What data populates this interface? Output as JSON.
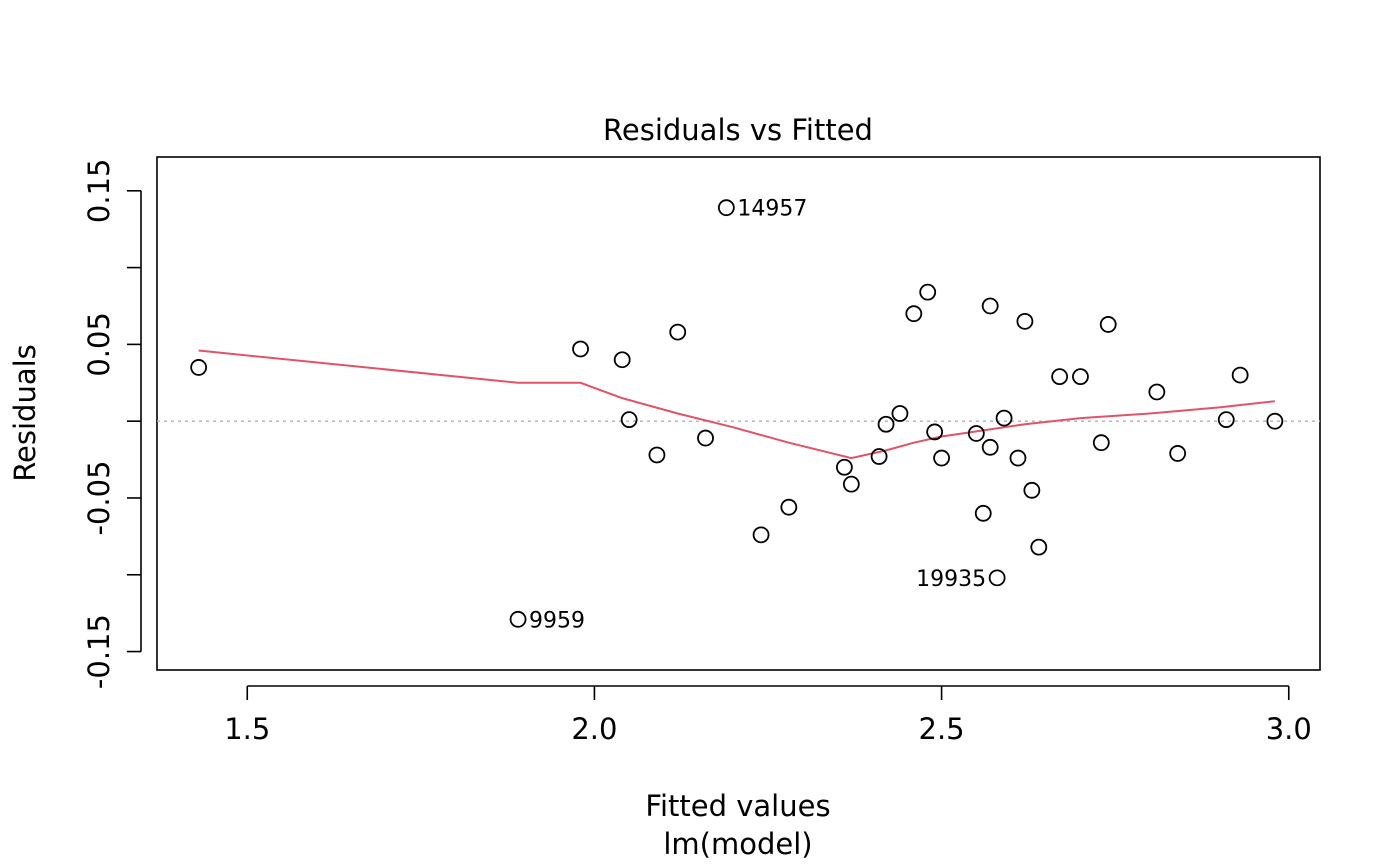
{
  "chart_data": {
    "type": "scatter",
    "title": "Residuals vs Fitted",
    "xlabel": "Fitted values",
    "subtitle": "lm(model)",
    "ylabel": "Residuals",
    "xlim": [
      1.37,
      3.045
    ],
    "ylim": [
      -0.162,
      0.172
    ],
    "x_ticks": [
      "1.5",
      "2.0",
      "2.5",
      "3.0"
    ],
    "y_ticks": [
      "-0.15",
      "-0.05",
      "0.05",
      "0.15"
    ],
    "reference_line": {
      "y": 0,
      "style": "dotted",
      "color": "#b0b0b0"
    },
    "points": [
      {
        "x": 1.43,
        "y": 0.035
      },
      {
        "x": 1.89,
        "y": -0.129,
        "label": "9959"
      },
      {
        "x": 1.98,
        "y": 0.047
      },
      {
        "x": 2.04,
        "y": 0.04
      },
      {
        "x": 2.05,
        "y": 0.001
      },
      {
        "x": 2.09,
        "y": -0.022
      },
      {
        "x": 2.12,
        "y": 0.058
      },
      {
        "x": 2.16,
        "y": -0.011
      },
      {
        "x": 2.19,
        "y": 0.139,
        "label": "14957"
      },
      {
        "x": 2.24,
        "y": -0.074
      },
      {
        "x": 2.28,
        "y": -0.056
      },
      {
        "x": 2.36,
        "y": -0.03
      },
      {
        "x": 2.37,
        "y": -0.041
      },
      {
        "x": 2.41,
        "y": -0.023
      },
      {
        "x": 2.42,
        "y": -0.002
      },
      {
        "x": 2.44,
        "y": 0.005
      },
      {
        "x": 2.46,
        "y": 0.07
      },
      {
        "x": 2.48,
        "y": 0.084
      },
      {
        "x": 2.49,
        "y": -0.007
      },
      {
        "x": 2.5,
        "y": -0.024
      },
      {
        "x": 2.55,
        "y": -0.008
      },
      {
        "x": 2.56,
        "y": -0.06
      },
      {
        "x": 2.57,
        "y": -0.017
      },
      {
        "x": 2.57,
        "y": 0.075
      },
      {
        "x": 2.58,
        "y": -0.102,
        "label": "19935"
      },
      {
        "x": 2.59,
        "y": 0.002
      },
      {
        "x": 2.61,
        "y": -0.024
      },
      {
        "x": 2.62,
        "y": 0.065
      },
      {
        "x": 2.63,
        "y": -0.045
      },
      {
        "x": 2.64,
        "y": -0.082
      },
      {
        "x": 2.67,
        "y": 0.029
      },
      {
        "x": 2.7,
        "y": 0.029
      },
      {
        "x": 2.73,
        "y": -0.014
      },
      {
        "x": 2.74,
        "y": 0.063
      },
      {
        "x": 2.81,
        "y": 0.019
      },
      {
        "x": 2.84,
        "y": -0.021
      },
      {
        "x": 2.91,
        "y": 0.001
      },
      {
        "x": 2.93,
        "y": 0.03
      },
      {
        "x": 2.98,
        "y": 0.0
      }
    ],
    "smoother": {
      "color": "#df536b",
      "x": [
        1.43,
        1.89,
        1.98,
        2.04,
        2.12,
        2.2,
        2.28,
        2.37,
        2.42,
        2.46,
        2.5,
        2.56,
        2.62,
        2.7,
        2.8,
        2.9,
        2.98
      ],
      "y": [
        0.046,
        0.025,
        0.025,
        0.015,
        0.005,
        -0.004,
        -0.014,
        -0.024,
        -0.019,
        -0.014,
        -0.01,
        -0.006,
        -0.002,
        0.002,
        0.005,
        0.009,
        0.013
      ]
    }
  }
}
